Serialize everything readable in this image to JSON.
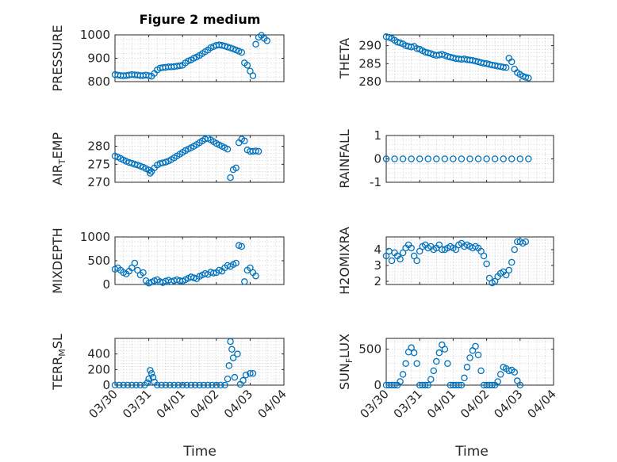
{
  "figure": {
    "title": "Figure 2 medium",
    "xlabel": "Time",
    "colors": {
      "marker": "#0072BD",
      "axes": "#262626"
    },
    "grid": "on",
    "x_tick_labels": [
      "03/30",
      "03/31",
      "04/01",
      "04/02",
      "04/03",
      "04/04"
    ]
  },
  "chart_data": [
    {
      "type": "scatter",
      "ylabel": "PRESSURE",
      "ylim": [
        800,
        1000
      ],
      "yticks": [
        800,
        900,
        1000
      ],
      "series": [
        {
          "x": [
            "03/30 00:00",
            "03/30 02:00",
            "03/30 04:00",
            "03/30 06:00",
            "03/30 08:00",
            "03/30 10:00",
            "03/30 12:00",
            "03/30 14:00",
            "03/30 16:00",
            "03/30 18:00",
            "03/30 20:00",
            "03/30 22:00",
            "03/31 00:00",
            "03/31 02:00",
            "03/31 04:00",
            "03/31 06:00",
            "03/31 08:00",
            "03/31 10:00",
            "03/31 12:00",
            "03/31 14:00",
            "03/31 16:00",
            "03/31 18:00",
            "03/31 20:00",
            "03/31 22:00",
            "04/01 00:00",
            "04/01 02:00",
            "04/01 04:00",
            "04/01 06:00",
            "04/01 08:00",
            "04/01 10:00",
            "04/01 12:00",
            "04/01 14:00",
            "04/01 16:00",
            "04/01 18:00",
            "04/01 20:00",
            "04/01 22:00",
            "04/02 00:00",
            "04/02 02:00",
            "04/02 04:00",
            "04/02 06:00",
            "04/02 08:00",
            "04/02 10:00",
            "04/02 12:00",
            "04/02 14:00",
            "04/02 16:00",
            "04/02 18:00",
            "04/02 20:00",
            "04/02 22:00",
            "04/03 00:00",
            "04/03 02:00",
            "04/03 04:00",
            "04/03 06:00",
            "04/03 08:00",
            "04/03 10:00",
            "04/03 12:00"
          ],
          "y": [
            830,
            828,
            826,
            825,
            826,
            828,
            830,
            829,
            828,
            826,
            826,
            828,
            825,
            823,
            835,
            850,
            858,
            860,
            861,
            863,
            863,
            864,
            866,
            868,
            870,
            880,
            888,
            893,
            900,
            905,
            912,
            920,
            928,
            935,
            945,
            950,
            955,
            957,
            955,
            952,
            948,
            944,
            940,
            935,
            930,
            925,
            880,
            870,
            845,
            825,
            960,
            990,
            998,
            985,
            975
          ]
        }
      ]
    },
    {
      "type": "scatter",
      "ylabel": "THETA",
      "ylim": [
        280,
        293
      ],
      "yticks": [
        280,
        285,
        290
      ],
      "series": [
        {
          "x": [
            "03/30 00:00",
            "03/30 02:00",
            "03/30 04:00",
            "03/30 06:00",
            "03/30 08:00",
            "03/30 10:00",
            "03/30 12:00",
            "03/30 14:00",
            "03/30 16:00",
            "03/30 18:00",
            "03/30 20:00",
            "03/30 22:00",
            "03/31 00:00",
            "03/31 02:00",
            "03/31 04:00",
            "03/31 06:00",
            "03/31 08:00",
            "03/31 10:00",
            "03/31 12:00",
            "03/31 14:00",
            "03/31 16:00",
            "03/31 18:00",
            "03/31 20:00",
            "03/31 22:00",
            "04/01 00:00",
            "04/01 02:00",
            "04/01 04:00",
            "04/01 06:00",
            "04/01 08:00",
            "04/01 10:00",
            "04/01 12:00",
            "04/01 14:00",
            "04/01 16:00",
            "04/01 18:00",
            "04/01 20:00",
            "04/01 22:00",
            "04/02 00:00",
            "04/02 02:00",
            "04/02 04:00",
            "04/02 06:00",
            "04/02 08:00",
            "04/02 10:00",
            "04/02 12:00",
            "04/02 14:00",
            "04/02 16:00",
            "04/02 18:00",
            "04/02 20:00",
            "04/02 22:00",
            "04/03 00:00",
            "04/03 02:00",
            "04/03 04:00",
            "04/03 06:00"
          ],
          "y": [
            292.5,
            292.3,
            292,
            291.5,
            291,
            290.8,
            290.5,
            290,
            289.8,
            289.6,
            289.8,
            289.2,
            289.0,
            288.6,
            288.2,
            288.0,
            287.8,
            287.5,
            287.3,
            287.4,
            287.6,
            287.3,
            287.0,
            286.8,
            286.6,
            286.4,
            286.3,
            286.2,
            286.3,
            286.1,
            286.0,
            285.9,
            285.7,
            285.5,
            285.3,
            285.1,
            285.0,
            284.8,
            284.6,
            284.5,
            284.3,
            284.2,
            284.0,
            283.9,
            286.5,
            285.5,
            283.5,
            282.5,
            282.0,
            281.5,
            281.2,
            281.0
          ]
        }
      ]
    },
    {
      "type": "scatter",
      "ylabel": "AIR_TEMP",
      "ylim": [
        270,
        283
      ],
      "yticks": [
        270,
        275,
        280
      ],
      "series": [
        {
          "x": [
            "03/30 00:00",
            "03/30 02:00",
            "03/30 04:00",
            "03/30 06:00",
            "03/30 08:00",
            "03/30 10:00",
            "03/30 12:00",
            "03/30 14:00",
            "03/30 16:00",
            "03/30 18:00",
            "03/30 20:00",
            "03/30 22:00",
            "03/31 00:00",
            "03/31 01:00",
            "03/31 02:00",
            "03/31 04:00",
            "03/31 06:00",
            "03/31 08:00",
            "03/31 10:00",
            "03/31 12:00",
            "03/31 14:00",
            "03/31 16:00",
            "03/31 18:00",
            "03/31 20:00",
            "03/31 22:00",
            "04/01 00:00",
            "04/01 02:00",
            "04/01 04:00",
            "04/01 06:00",
            "04/01 08:00",
            "04/01 10:00",
            "04/01 12:00",
            "04/01 14:00",
            "04/01 16:00",
            "04/01 18:00",
            "04/01 20:00",
            "04/01 22:00",
            "04/02 00:00",
            "04/02 02:00",
            "04/02 04:00",
            "04/02 06:00",
            "04/02 08:00",
            "04/02 10:00",
            "04/02 12:00",
            "04/02 14:00",
            "04/02 16:00",
            "04/02 18:00",
            "04/02 20:00",
            "04/02 22:00",
            "04/03 00:00",
            "04/03 02:00",
            "04/03 04:00",
            "04/03 06:00"
          ],
          "y": [
            277.3,
            277.0,
            276.6,
            276.2,
            275.8,
            275.5,
            275.3,
            275.0,
            274.8,
            274.5,
            274.2,
            273.8,
            273.4,
            272.5,
            273.0,
            274.0,
            274.8,
            275.2,
            275.4,
            275.6,
            275.9,
            276.3,
            276.8,
            277.3,
            277.8,
            278.3,
            278.8,
            279.2,
            279.6,
            280.0,
            280.5,
            281.0,
            281.5,
            282.0,
            282.2,
            281.8,
            281.3,
            280.8,
            280.4,
            280.0,
            279.6,
            279.2,
            271.3,
            273.5,
            274.0,
            281.0,
            282.0,
            281.5,
            279.0,
            278.6,
            278.6,
            278.7,
            278.6
          ]
        }
      ]
    },
    {
      "type": "scatter",
      "ylabel": "RAINFALL",
      "ylim": [
        -1,
        1
      ],
      "yticks": [
        -1,
        0,
        1
      ],
      "series": [
        {
          "x": [
            "03/30 00:00",
            "03/30 06:00",
            "03/30 12:00",
            "03/30 18:00",
            "03/31 00:00",
            "03/31 06:00",
            "03/31 12:00",
            "03/31 18:00",
            "04/01 00:00",
            "04/01 06:00",
            "04/01 12:00",
            "04/01 18:00",
            "04/02 00:00",
            "04/02 06:00",
            "04/02 12:00",
            "04/02 18:00",
            "04/03 00:00",
            "04/03 06:00"
          ],
          "y": [
            0,
            0,
            0,
            0,
            0,
            0,
            0,
            0,
            0,
            0,
            0,
            0,
            0,
            0,
            0,
            0,
            0,
            0
          ]
        }
      ]
    },
    {
      "type": "scatter",
      "ylabel": "MIXDEPTH",
      "ylim": [
        0,
        1000
      ],
      "yticks": [
        0,
        500,
        1000
      ],
      "series": [
        {
          "x": [
            "03/30 00:00",
            "03/30 02:00",
            "03/30 04:00",
            "03/30 06:00",
            "03/30 08:00",
            "03/30 10:00",
            "03/30 12:00",
            "03/30 14:00",
            "03/30 16:00",
            "03/30 18:00",
            "03/30 20:00",
            "03/30 22:00",
            "03/31 00:00",
            "03/31 02:00",
            "03/31 04:00",
            "03/31 06:00",
            "03/31 08:00",
            "03/31 10:00",
            "03/31 12:00",
            "03/31 14:00",
            "03/31 16:00",
            "03/31 18:00",
            "03/31 20:00",
            "03/31 22:00",
            "04/01 00:00",
            "04/01 02:00",
            "04/01 04:00",
            "04/01 06:00",
            "04/01 08:00",
            "04/01 10:00",
            "04/01 12:00",
            "04/01 14:00",
            "04/01 16:00",
            "04/01 18:00",
            "04/01 20:00",
            "04/01 22:00",
            "04/02 00:00",
            "04/02 02:00",
            "04/02 04:00",
            "04/02 06:00",
            "04/02 08:00",
            "04/02 10:00",
            "04/02 12:00",
            "04/02 14:00",
            "04/02 16:00",
            "04/02 18:00",
            "04/02 20:00",
            "04/02 22:00",
            "04/03 00:00",
            "04/03 02:00",
            "04/03 04:00"
          ],
          "y": [
            320,
            350,
            300,
            250,
            220,
            280,
            350,
            450,
            300,
            200,
            250,
            80,
            30,
            50,
            80,
            100,
            60,
            40,
            70,
            90,
            60,
            80,
            100,
            80,
            70,
            100,
            130,
            160,
            140,
            120,
            170,
            200,
            230,
            210,
            260,
            240,
            250,
            300,
            280,
            350,
            400,
            380,
            420,
            450,
            820,
            800,
            60,
            300,
            350,
            250,
            180
          ]
        }
      ]
    },
    {
      "type": "scatter",
      "ylabel": "H2OMIXRA",
      "ylim": [
        1.8,
        4.8
      ],
      "yticks": [
        2,
        3,
        4
      ],
      "series": [
        {
          "x": [
            "03/30 00:00",
            "03/30 02:00",
            "03/30 04:00",
            "03/30 06:00",
            "03/30 08:00",
            "03/30 10:00",
            "03/30 12:00",
            "03/30 14:00",
            "03/30 16:00",
            "03/30 18:00",
            "03/30 20:00",
            "03/30 22:00",
            "03/31 00:00",
            "03/31 02:00",
            "03/31 04:00",
            "03/31 06:00",
            "03/31 08:00",
            "03/31 10:00",
            "03/31 12:00",
            "03/31 14:00",
            "03/31 16:00",
            "03/31 18:00",
            "03/31 20:00",
            "03/31 22:00",
            "04/01 00:00",
            "04/01 02:00",
            "04/01 04:00",
            "04/01 06:00",
            "04/01 08:00",
            "04/01 10:00",
            "04/01 12:00",
            "04/01 14:00",
            "04/01 16:00",
            "04/01 18:00",
            "04/01 20:00",
            "04/01 22:00",
            "04/02 00:00",
            "04/02 02:00",
            "04/02 04:00",
            "04/02 06:00",
            "04/02 08:00",
            "04/02 10:00",
            "04/02 12:00",
            "04/02 14:00",
            "04/02 16:00",
            "04/02 18:00",
            "04/02 20:00",
            "04/02 22:00",
            "04/03 00:00",
            "04/03 02:00",
            "04/03 04:00"
          ],
          "y": [
            3.6,
            3.9,
            3.3,
            3.8,
            3.6,
            3.4,
            3.8,
            4.1,
            4.3,
            4.1,
            3.6,
            3.3,
            3.9,
            4.2,
            4.3,
            4.1,
            4.2,
            4.0,
            4.1,
            4.3,
            4.0,
            4.0,
            4.1,
            4.2,
            4.1,
            4.0,
            4.3,
            4.4,
            4.2,
            4.3,
            4.2,
            4.1,
            4.2,
            4.1,
            3.9,
            3.6,
            3.1,
            2.2,
            1.9,
            2.0,
            2.3,
            2.5,
            2.6,
            2.4,
            2.7,
            3.2,
            4.0,
            4.5,
            4.5,
            4.4,
            4.5
          ]
        }
      ]
    },
    {
      "type": "scatter",
      "ylabel": "TERR_MSL",
      "ylim": [
        0,
        600
      ],
      "yticks": [
        0,
        200,
        400
      ],
      "series": [
        {
          "x": [
            "03/30 00:00",
            "03/30 03:00",
            "03/30 06:00",
            "03/30 09:00",
            "03/30 12:00",
            "03/30 15:00",
            "03/30 18:00",
            "03/30 21:00",
            "03/30 23:00",
            "03/31 00:00",
            "03/31 01:00",
            "03/31 02:00",
            "03/31 03:00",
            "03/31 04:00",
            "03/31 06:00",
            "03/31 09:00",
            "03/31 12:00",
            "03/31 15:00",
            "03/31 18:00",
            "03/31 21:00",
            "04/01 00:00",
            "04/01 03:00",
            "04/01 06:00",
            "04/01 09:00",
            "04/01 12:00",
            "04/01 15:00",
            "04/01 18:00",
            "04/01 21:00",
            "04/02 00:00",
            "04/02 03:00",
            "04/02 06:00",
            "04/02 08:00",
            "04/02 09:00",
            "04/02 10:00",
            "04/02 11:00",
            "04/02 12:00",
            "04/02 13:00",
            "04/02 15:00",
            "04/02 17:00",
            "04/02 19:00",
            "04/02 21:00",
            "04/03 00:00",
            "04/03 02:00"
          ],
          "y": [
            0,
            0,
            0,
            0,
            0,
            0,
            0,
            0,
            30,
            80,
            190,
            150,
            100,
            40,
            0,
            0,
            0,
            0,
            0,
            0,
            0,
            0,
            0,
            0,
            0,
            0,
            0,
            0,
            0,
            0,
            0,
            80,
            250,
            560,
            460,
            350,
            100,
            400,
            10,
            60,
            130,
            150,
            150
          ]
        }
      ]
    },
    {
      "type": "scatter",
      "ylabel": "SUN_FLUX",
      "ylim": [
        0,
        650
      ],
      "yticks": [
        0,
        500
      ],
      "series": [
        {
          "x": [
            "03/30 00:00",
            "03/30 02:00",
            "03/30 04:00",
            "03/30 06:00",
            "03/30 08:00",
            "03/30 10:00",
            "03/30 12:00",
            "03/30 14:00",
            "03/30 16:00",
            "03/30 18:00",
            "03/30 20:00",
            "03/30 22:00",
            "03/31 00:00",
            "03/31 02:00",
            "03/31 04:00",
            "03/31 06:00",
            "03/31 08:00",
            "03/31 10:00",
            "03/31 12:00",
            "03/31 14:00",
            "03/31 16:00",
            "03/31 18:00",
            "03/31 20:00",
            "03/31 22:00",
            "04/01 00:00",
            "04/01 02:00",
            "04/01 04:00",
            "04/01 06:00",
            "04/01 08:00",
            "04/01 10:00",
            "04/01 12:00",
            "04/01 14:00",
            "04/01 16:00",
            "04/01 18:00",
            "04/01 20:00",
            "04/01 22:00",
            "04/02 00:00",
            "04/02 02:00",
            "04/02 04:00",
            "04/02 06:00",
            "04/02 08:00",
            "04/02 10:00",
            "04/02 12:00",
            "04/02 14:00",
            "04/02 16:00",
            "04/02 18:00",
            "04/02 20:00",
            "04/02 22:00",
            "04/03 00:00"
          ],
          "y": [
            0,
            0,
            0,
            0,
            0,
            50,
            150,
            300,
            460,
            520,
            450,
            300,
            0,
            0,
            0,
            0,
            80,
            200,
            330,
            450,
            560,
            500,
            300,
            0,
            0,
            0,
            0,
            0,
            100,
            250,
            380,
            480,
            540,
            420,
            200,
            0,
            0,
            0,
            0,
            0,
            50,
            150,
            250,
            230,
            200,
            210,
            180,
            60,
            0
          ]
        }
      ]
    }
  ]
}
